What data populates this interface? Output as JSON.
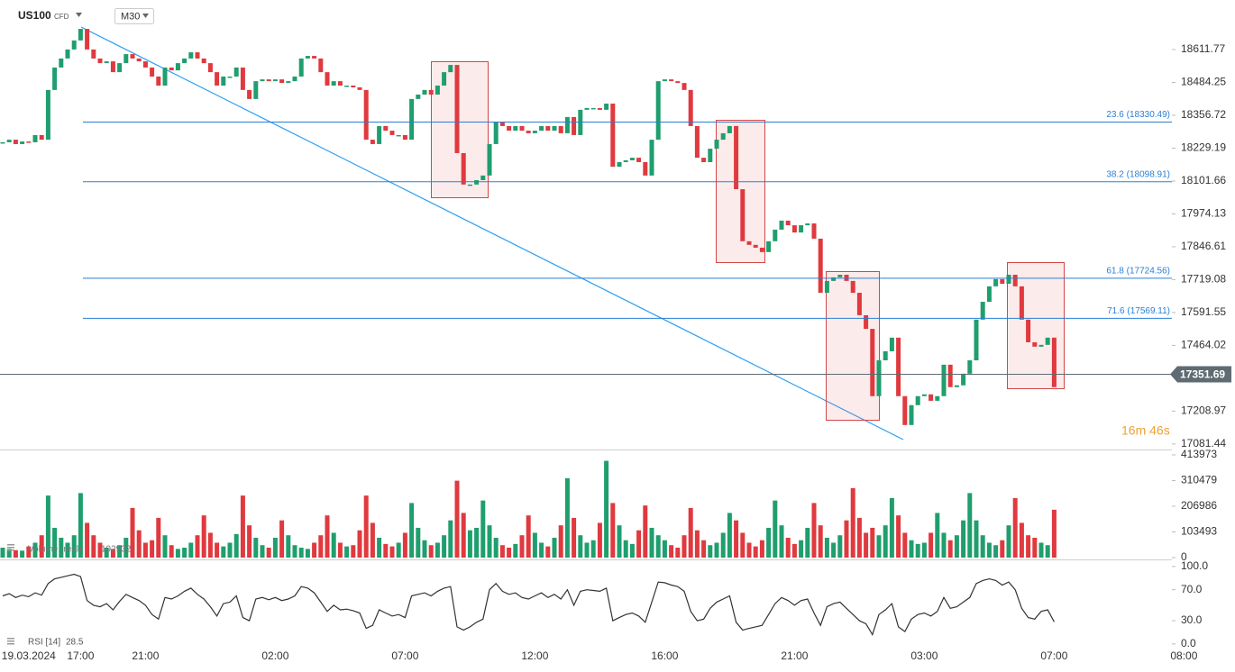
{
  "chart_data": [
    {
      "type": "candlestick",
      "title": "US100",
      "subtitle": "CFD",
      "timeframe": "M30",
      "categories": [
        null,
        null,
        null,
        null,
        "19.03.2024",
        null,
        null,
        null,
        null,
        null,
        null,
        null,
        "17:00",
        null,
        null,
        null,
        null,
        null,
        null,
        null,
        null,
        null,
        "21:00",
        null,
        null,
        null,
        null,
        null,
        null,
        null,
        null,
        null,
        null,
        null,
        null,
        null,
        null,
        null,
        null,
        null,
        null,
        null,
        "02:00",
        null,
        null,
        null,
        null,
        null,
        null,
        null,
        null,
        null,
        null,
        null,
        null,
        null,
        null,
        null,
        null,
        null,
        null,
        null,
        "07:00",
        null,
        null,
        null,
        null,
        null,
        null,
        null,
        null,
        null,
        null,
        null,
        null,
        null,
        null,
        null,
        null,
        null,
        null,
        null,
        "12:00",
        null,
        null,
        null,
        null,
        null,
        null,
        null,
        null,
        null,
        null,
        null,
        null,
        null,
        null,
        null,
        null,
        null,
        null,
        null,
        "16:00",
        null,
        null,
        null,
        null,
        null,
        null,
        null,
        null,
        null,
        null,
        null,
        null,
        null,
        null,
        null,
        null,
        null,
        null,
        null,
        "21:00",
        null,
        null,
        null,
        null,
        null,
        null,
        null,
        null,
        null,
        null,
        null,
        null,
        null,
        null,
        null,
        null,
        null,
        null,
        null,
        "03:00",
        null,
        null,
        null,
        null,
        null,
        null,
        null,
        null,
        null,
        null,
        null,
        null,
        null,
        null,
        null,
        null,
        null,
        null,
        null,
        "07:00",
        null,
        null,
        null,
        null,
        null,
        null,
        null,
        null,
        null,
        null,
        null,
        null,
        null,
        null,
        null,
        null,
        null,
        null,
        null,
        "08:00"
      ],
      "values": [
        18252,
        18262,
        18245,
        18255,
        18252,
        18280,
        18262,
        18455,
        18542,
        18577,
        18612,
        18647,
        18692,
        18612,
        18577,
        18559,
        18566,
        18524,
        18559,
        18594,
        18577,
        18566,
        18542,
        18507,
        18472,
        18542,
        18531,
        18559,
        18577,
        18601,
        18577,
        18559,
        18524,
        18472,
        18507,
        18507,
        18542,
        18455,
        18420,
        18489,
        18496,
        18489,
        18496,
        18482,
        18489,
        18507,
        18577,
        18587,
        18577,
        18524,
        18472,
        18489,
        18472,
        18472,
        18465,
        18455,
        18262,
        18245,
        18315,
        18297,
        18280,
        18280,
        18262,
        18420,
        18437,
        18455,
        18437,
        18472,
        18524,
        18552,
        18210,
        18088,
        18088,
        18105,
        18123,
        18245,
        18332,
        18315,
        18297,
        18315,
        18297,
        18287,
        18297,
        18315,
        18297,
        18315,
        18287,
        18350,
        18280,
        18378,
        18385,
        18385,
        18378,
        18402,
        18157,
        18175,
        18182,
        18192,
        18175,
        18123,
        18262,
        18489,
        18496,
        18489,
        18482,
        18455,
        18315,
        18192,
        18175,
        18227,
        18262,
        18287,
        18315,
        18070,
        17868,
        17854,
        17843,
        17826,
        17868,
        17913,
        17948,
        17930,
        17902,
        17930,
        17937,
        17878,
        17668,
        17714,
        17728,
        17738,
        17714,
        17668,
        17581,
        17528,
        17267,
        17406,
        17441,
        17494,
        17267,
        17155,
        17232,
        17267,
        17274,
        17249,
        17267,
        17389,
        17302,
        17309,
        17354,
        17406,
        17564,
        17633,
        17693,
        17721,
        17703,
        17738,
        17693,
        17564,
        17476,
        17459,
        17466,
        17494,
        17302,
        null,
        null,
        null,
        null,
        null,
        null,
        null,
        null,
        null,
        null,
        null,
        null,
        null,
        null,
        null,
        null,
        null,
        null,
        null,
        null
      ],
      "up_color": "#1f9e6e",
      "down_color": "#e0393e",
      "ylim": [
        17060,
        18804
      ],
      "yticks": [
        18611.77,
        18484.25,
        18356.72,
        18229.19,
        18101.66,
        17974.13,
        17846.61,
        17719.08,
        17591.55,
        17464.02,
        17208.97,
        17081.44
      ],
      "fib_levels": [
        {
          "value": 18330.49,
          "label": "23.6 (18330.49)"
        },
        {
          "value": 18098.91,
          "label": "38.2 (18098.91)"
        },
        {
          "value": 17724.56,
          "label": "61.8 (17724.56)"
        },
        {
          "value": 17569.11,
          "label": "71.6 (17569.11)"
        }
      ],
      "fib_color": "#2a7fd6",
      "last_price": 17351.69,
      "countdown": "16m 46s"
    },
    {
      "type": "bar",
      "name": "Volume (real)",
      "values": [
        40000,
        35000,
        30000,
        28000,
        45000,
        60000,
        90000,
        250000,
        120000,
        80000,
        60000,
        90000,
        260000,
        140000,
        90000,
        60000,
        40000,
        35000,
        50000,
        80000,
        200000,
        110000,
        60000,
        70000,
        160000,
        90000,
        50000,
        35000,
        40000,
        60000,
        90000,
        170000,
        100000,
        60000,
        45000,
        60000,
        95000,
        250000,
        130000,
        80000,
        50000,
        40000,
        80000,
        150000,
        90000,
        50000,
        40000,
        35000,
        60000,
        90000,
        170000,
        100000,
        60000,
        45000,
        50000,
        110000,
        250000,
        140000,
        80000,
        55000,
        45000,
        60000,
        100000,
        220000,
        120000,
        70000,
        50000,
        60000,
        90000,
        150000,
        310000,
        180000,
        110000,
        120000,
        230000,
        130000,
        80000,
        50000,
        40000,
        55000,
        90000,
        170000,
        100000,
        60000,
        45000,
        80000,
        130000,
        320000,
        160000,
        90000,
        60000,
        70000,
        140000,
        390000,
        220000,
        130000,
        70000,
        55000,
        110000,
        210000,
        120000,
        90000,
        70000,
        50000,
        40000,
        90000,
        200000,
        110000,
        70000,
        50000,
        60000,
        100000,
        180000,
        150000,
        100000,
        60000,
        45000,
        70000,
        120000,
        230000,
        130000,
        80000,
        55000,
        70000,
        120000,
        220000,
        130000,
        80000,
        60000,
        90000,
        150000,
        280000,
        160000,
        100000,
        120000,
        90000,
        130000,
        240000,
        170000,
        100000,
        70000,
        55000,
        60000,
        100000,
        180000,
        100000,
        70000,
        90000,
        150000,
        260000,
        150000,
        90000,
        60000,
        50000,
        70000,
        130000,
        240000,
        140000,
        90000,
        80000,
        60000,
        50000,
        192932,
        null,
        null,
        null,
        null,
        null,
        null,
        null,
        null,
        null,
        null,
        null,
        null,
        null,
        null,
        null,
        null,
        null,
        null,
        null,
        null
      ],
      "up_color": "#1f9e6e",
      "down_color": "#e0393e",
      "ylim": [
        0,
        432000
      ],
      "yticks": [
        413973,
        310479,
        206986,
        103493,
        0
      ]
    },
    {
      "type": "line",
      "name": "RSI [14]",
      "color": "#333333",
      "values": [
        62,
        65,
        60,
        63,
        61,
        66,
        63,
        78,
        84,
        86,
        88,
        90,
        87,
        56,
        50,
        48,
        52,
        44,
        55,
        64,
        60,
        56,
        50,
        38,
        32,
        60,
        58,
        62,
        68,
        72,
        64,
        58,
        48,
        36,
        52,
        54,
        62,
        34,
        30,
        58,
        60,
        57,
        60,
        56,
        58,
        62,
        74,
        72,
        66,
        54,
        42,
        50,
        44,
        45,
        43,
        40,
        20,
        24,
        44,
        40,
        36,
        38,
        34,
        62,
        64,
        66,
        62,
        68,
        72,
        74,
        22,
        18,
        22,
        28,
        32,
        70,
        78,
        68,
        64,
        66,
        60,
        58,
        62,
        66,
        60,
        64,
        58,
        70,
        50,
        68,
        70,
        69,
        68,
        72,
        30,
        34,
        38,
        40,
        36,
        28,
        54,
        80,
        79,
        76,
        74,
        68,
        42,
        30,
        32,
        46,
        54,
        58,
        62,
        28,
        18,
        20,
        22,
        24,
        38,
        52,
        60,
        56,
        50,
        56,
        58,
        40,
        24,
        48,
        52,
        54,
        46,
        38,
        30,
        26,
        12,
        38,
        44,
        52,
        22,
        16,
        32,
        38,
        40,
        36,
        42,
        60,
        46,
        48,
        54,
        60,
        78,
        82,
        84,
        82,
        76,
        80,
        70,
        46,
        34,
        32,
        42,
        44,
        28.5,
        null,
        null,
        null,
        null,
        null,
        null,
        null,
        null,
        null,
        null,
        null,
        null,
        null,
        null,
        null,
        null,
        null,
        null,
        null,
        null
      ],
      "ylim": [
        -6,
        108
      ],
      "yticks": [
        {
          "value": 100,
          "label": "100.0"
        },
        {
          "value": 70,
          "label": "70.0"
        },
        {
          "value": 30,
          "label": "30.0"
        },
        {
          "value": 0,
          "label": "0.0"
        }
      ]
    }
  ]
}
